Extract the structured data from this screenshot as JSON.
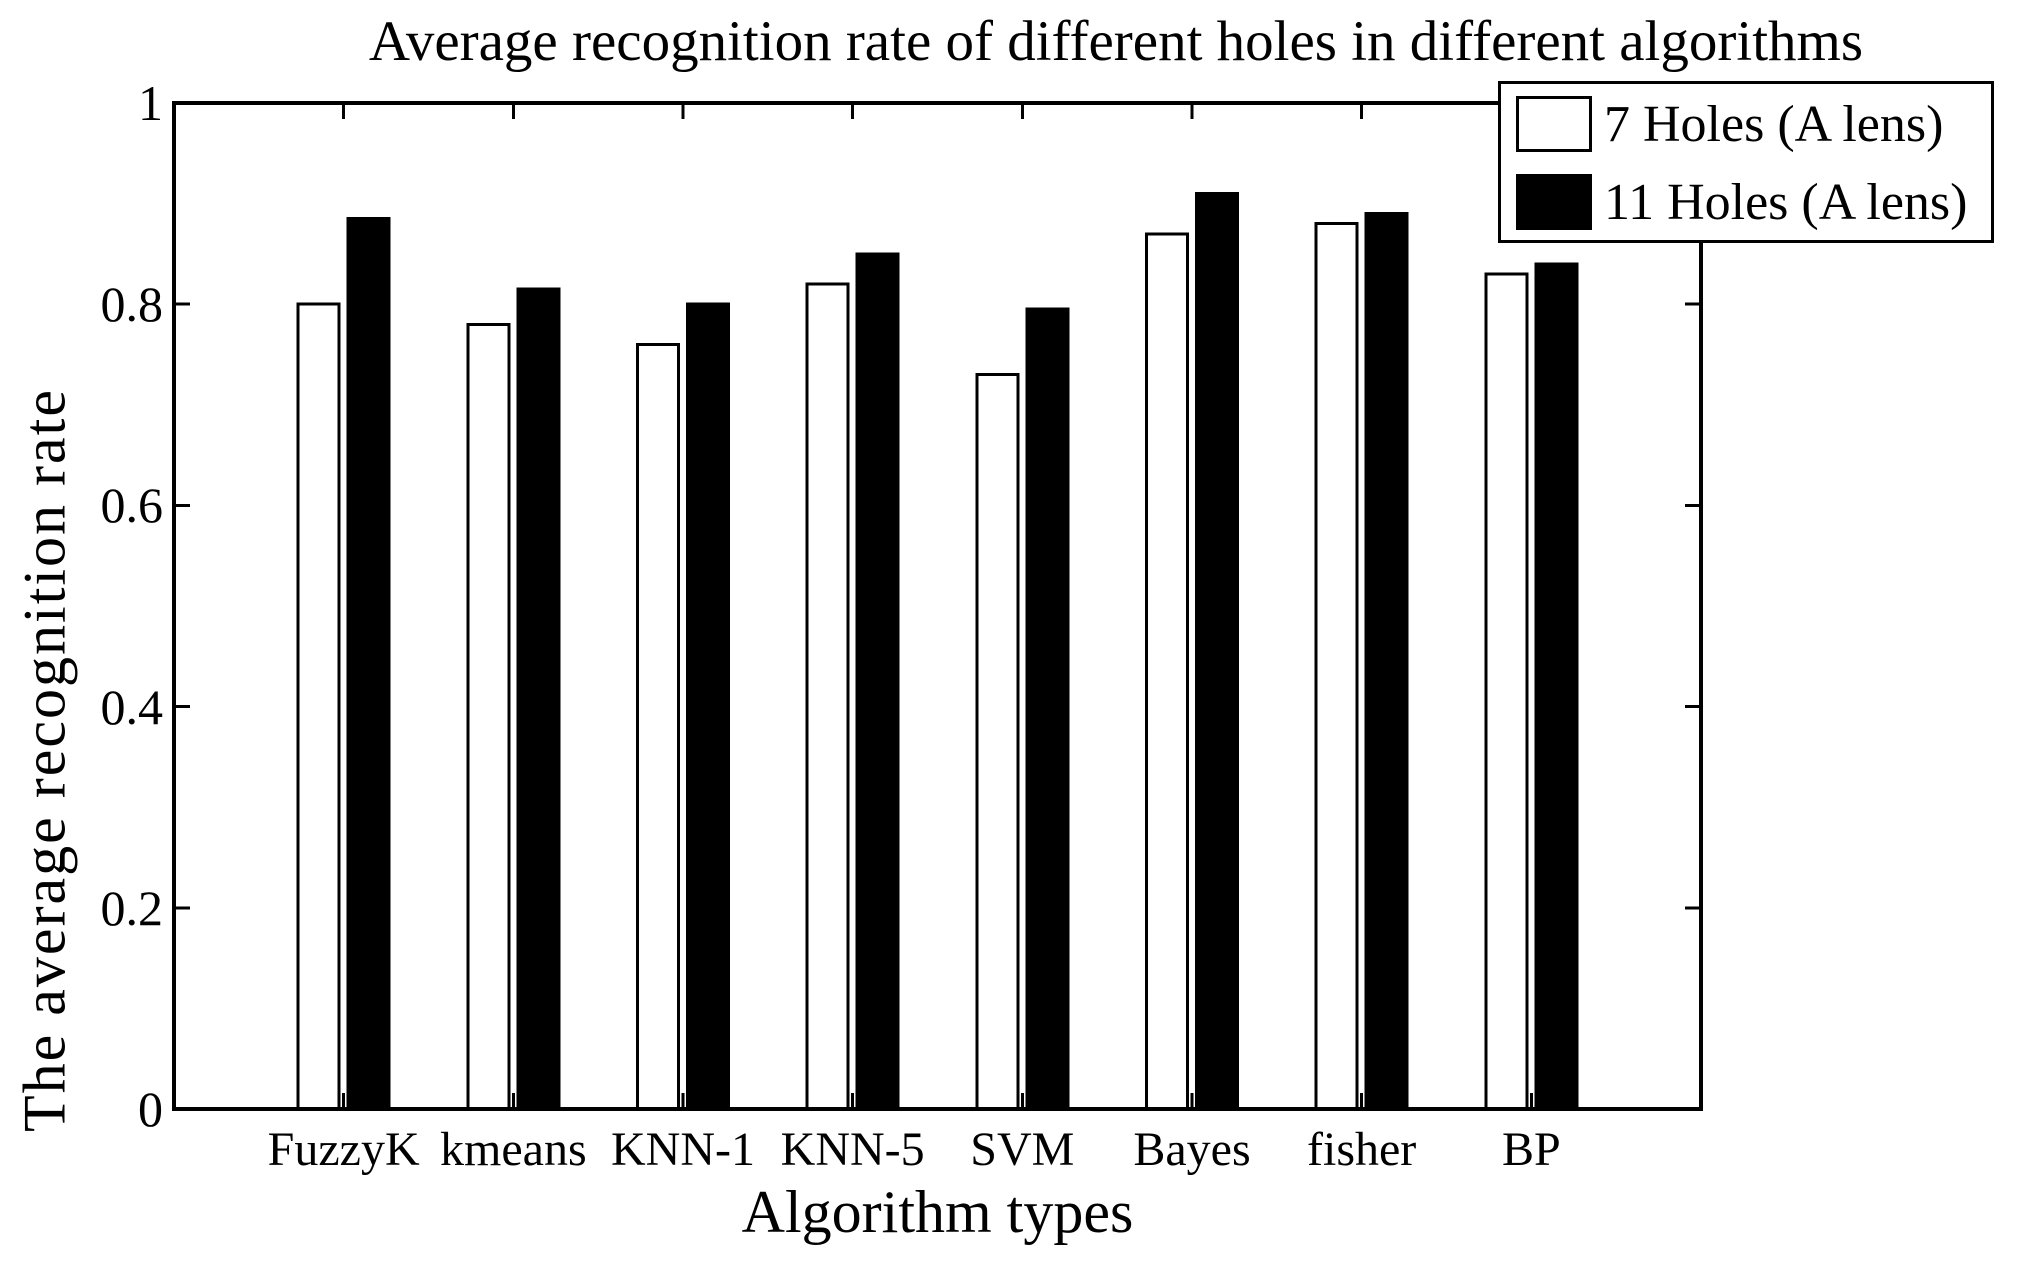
{
  "chart_data": {
    "type": "bar",
    "title": "Average recognition rate of different holes in different algorithms",
    "xlabel": "Algorithm types",
    "ylabel": "The average recognition rate",
    "categories": [
      "FuzzyK",
      "kmeans",
      "KNN-1",
      "KNN-5",
      "SVM",
      "Bayes",
      "fisher",
      "BP"
    ],
    "series": [
      {
        "name": "7 Holes (A lens)",
        "color": "#ffffff",
        "values": [
          0.8,
          0.78,
          0.76,
          0.82,
          0.73,
          0.87,
          0.88,
          0.83
        ]
      },
      {
        "name": "11 Holes (A lens)",
        "color": "#000000",
        "values": [
          0.885,
          0.815,
          0.8,
          0.85,
          0.795,
          0.91,
          0.89,
          0.84
        ]
      }
    ],
    "ylim": [
      0,
      1
    ],
    "yticks": [
      0,
      0.2,
      0.4,
      0.6,
      0.8,
      1
    ],
    "ytick_labels": [
      "0",
      "0.2",
      "0.4",
      "0.6",
      "0.8",
      "1"
    ],
    "grid": false,
    "legend_position": "top-right",
    "axis_color": "#000000",
    "bar_edge_color": "#000000",
    "background_color": "#ffffff"
  }
}
